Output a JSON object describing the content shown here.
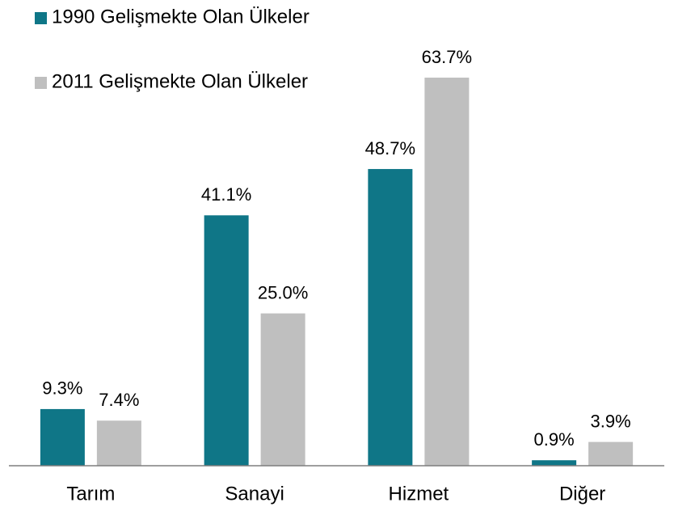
{
  "chart_data": {
    "type": "bar",
    "categories": [
      "Tarım",
      "Sanayi",
      "Hizmet",
      "Diğer"
    ],
    "series": [
      {
        "name": "1990 Gelişmekte Olan Ülkeler",
        "color": "#0f7687",
        "values": [
          9.3,
          41.1,
          48.7,
          0.9
        ],
        "value_labels": [
          "9.3%",
          "41.1%",
          "48.7%",
          "0.9%"
        ]
      },
      {
        "name": "2011 Gelişmekte Olan Ülkeler",
        "color": "#bfbfbf",
        "values": [
          7.4,
          25.0,
          63.7,
          3.9
        ],
        "value_labels": [
          "7.4%",
          "25.0%",
          "63.7%",
          "3.9%"
        ]
      }
    ],
    "legend": "top-left"
  }
}
